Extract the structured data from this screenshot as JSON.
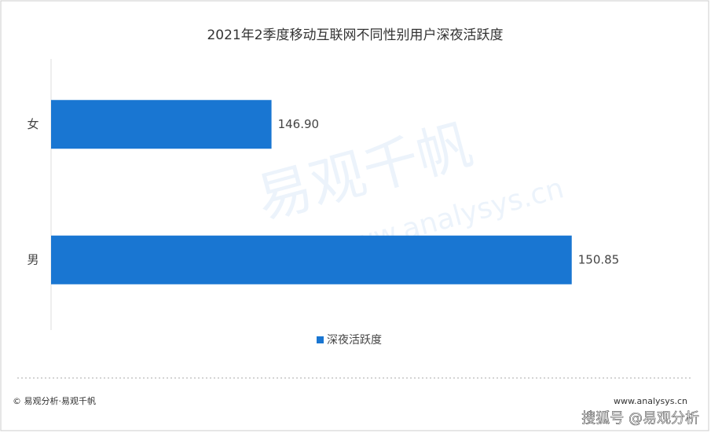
{
  "chart_data": {
    "type": "bar",
    "orientation": "horizontal",
    "title": "2021年2季度移动互联网不同性别用户深夜活跃度",
    "categories": [
      "女",
      "男"
    ],
    "series": [
      {
        "name": "深夜活跃度",
        "color": "#1976d2",
        "values": [
          146.9,
          150.85
        ],
        "value_labels": [
          "146.90",
          "150.85"
        ]
      }
    ],
    "xlim": [
      144,
      152
    ]
  },
  "footer": {
    "left": "© 易观分析·易观千帆",
    "right": "www.analysys.cn"
  },
  "watermark": {
    "main": "易观千帆",
    "url": "www.analysys.cn",
    "corner": "搜狐号 @易观分析"
  }
}
